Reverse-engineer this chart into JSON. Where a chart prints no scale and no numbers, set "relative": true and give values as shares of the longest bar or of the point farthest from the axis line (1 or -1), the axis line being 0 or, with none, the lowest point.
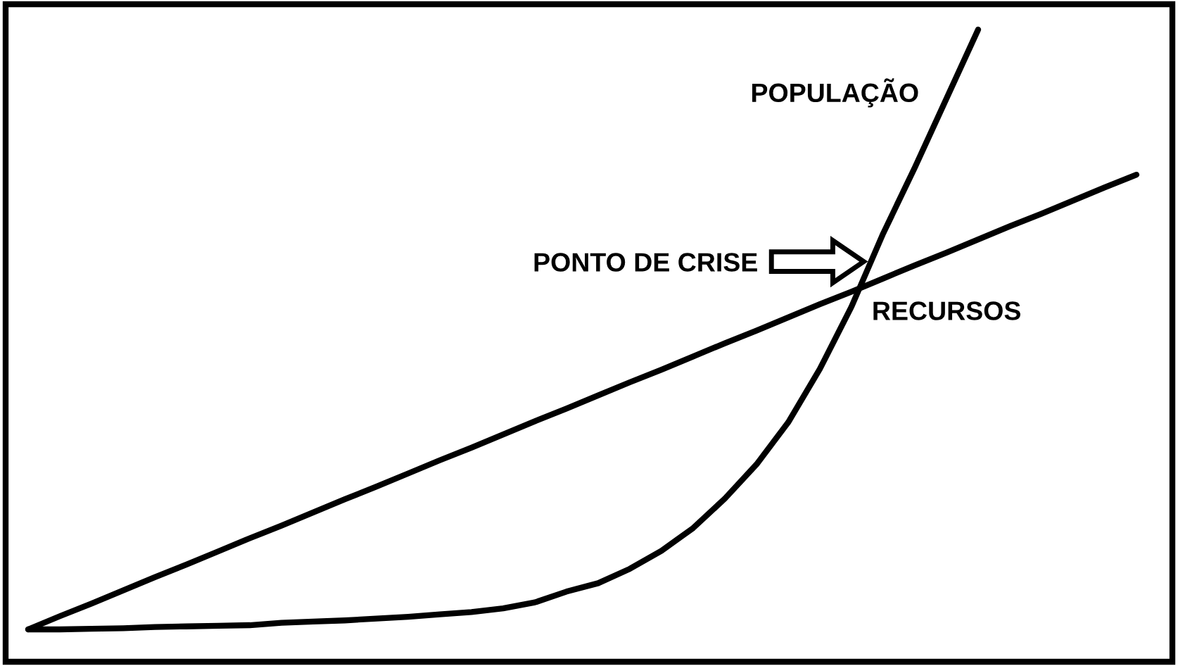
{
  "chart_data": {
    "type": "line",
    "relative": true,
    "categories": [
      null,
      null,
      null,
      null,
      null,
      null,
      null,
      null,
      null,
      null,
      null,
      null,
      null,
      null,
      null,
      null,
      null,
      null,
      null,
      null,
      null,
      null,
      null,
      null,
      null,
      null,
      null,
      null,
      null,
      null,
      null,
      null,
      null,
      null,
      null,
      null
    ],
    "series": [
      {
        "name": "POPULAÇÃO",
        "color": "#000000",
        "values": [
          0,
          0,
          0.001,
          0.002,
          0.004,
          0.005,
          0.006,
          0.007,
          0.011,
          0.013,
          0.015,
          0.018,
          0.021,
          0.025,
          0.029,
          0.035,
          0.045,
          0.063,
          0.077,
          0.101,
          0.131,
          0.169,
          0.218,
          0.275,
          0.345,
          0.434,
          0.538,
          0.66,
          0.77,
          0.885,
          1,
          null,
          null,
          null,
          null,
          null
        ]
      },
      {
        "name": "RECURSOS",
        "color": "#000000",
        "values": [
          0,
          0.022,
          0.043,
          0.065,
          0.087,
          0.108,
          0.13,
          0.152,
          0.173,
          0.195,
          0.217,
          0.238,
          0.26,
          0.282,
          0.303,
          0.325,
          0.347,
          0.368,
          0.39,
          0.412,
          0.433,
          0.455,
          0.477,
          0.498,
          0.52,
          0.542,
          0.563,
          0.585,
          0.607,
          0.628,
          0.65,
          0.672,
          0.693,
          0.715,
          0.737,
          0.758
        ]
      }
    ],
    "annotations": [
      "PONTO DE CRISE"
    ]
  }
}
